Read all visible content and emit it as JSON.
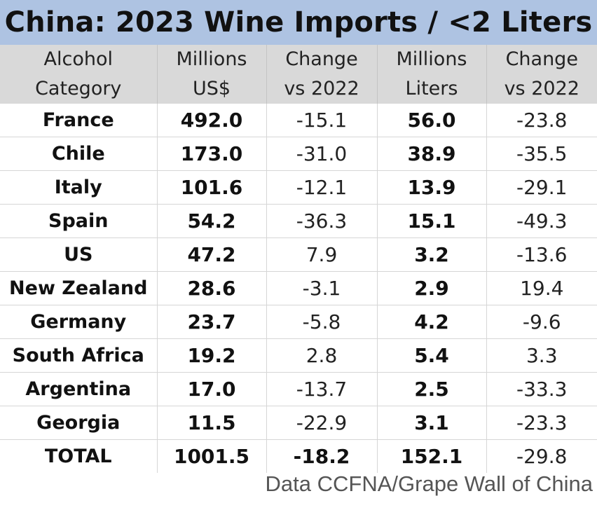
{
  "title": "China: 2023 Wine Imports / <2 Liters",
  "headers": [
    [
      "Alcohol",
      "Category"
    ],
    [
      "Millions",
      "US$"
    ],
    [
      "Change",
      "vs 2022"
    ],
    [
      "Millions",
      "Liters"
    ],
    [
      "Change",
      "vs 2022"
    ]
  ],
  "rows": [
    {
      "country": "France",
      "usd": "492.0",
      "usd_change": "-15.1",
      "liters": "56.0",
      "liters_change": "-23.8"
    },
    {
      "country": "Chile",
      "usd": "173.0",
      "usd_change": "-31.0",
      "liters": "38.9",
      "liters_change": "-35.5"
    },
    {
      "country": "Italy",
      "usd": "101.6",
      "usd_change": "-12.1",
      "liters": "13.9",
      "liters_change": "-29.1"
    },
    {
      "country": "Spain",
      "usd": "54.2",
      "usd_change": "-36.3",
      "liters": "15.1",
      "liters_change": "-49.3"
    },
    {
      "country": "US",
      "usd": "47.2",
      "usd_change": "7.9",
      "liters": "3.2",
      "liters_change": "-13.6"
    },
    {
      "country": "New Zealand",
      "usd": "28.6",
      "usd_change": "-3.1",
      "liters": "2.9",
      "liters_change": "19.4"
    },
    {
      "country": "Germany",
      "usd": "23.7",
      "usd_change": "-5.8",
      "liters": "4.2",
      "liters_change": "-9.6"
    },
    {
      "country": "South Africa",
      "usd": "19.2",
      "usd_change": "2.8",
      "liters": "5.4",
      "liters_change": "3.3"
    },
    {
      "country": "Argentina",
      "usd": "17.0",
      "usd_change": "-13.7",
      "liters": "2.5",
      "liters_change": "-33.3"
    },
    {
      "country": "Georgia",
      "usd": "11.5",
      "usd_change": "-22.9",
      "liters": "3.1",
      "liters_change": "-23.3"
    }
  ],
  "total": {
    "country": "TOTAL",
    "usd": "1001.5",
    "usd_change": "-18.2",
    "liters": "152.1",
    "liters_change": "-29.8"
  },
  "source": "Data CCFNA/Grape Wall of China",
  "colors": {
    "title_background": "#aec3e2",
    "header_background": "#d9d9d9",
    "source_text": "#555555"
  }
}
